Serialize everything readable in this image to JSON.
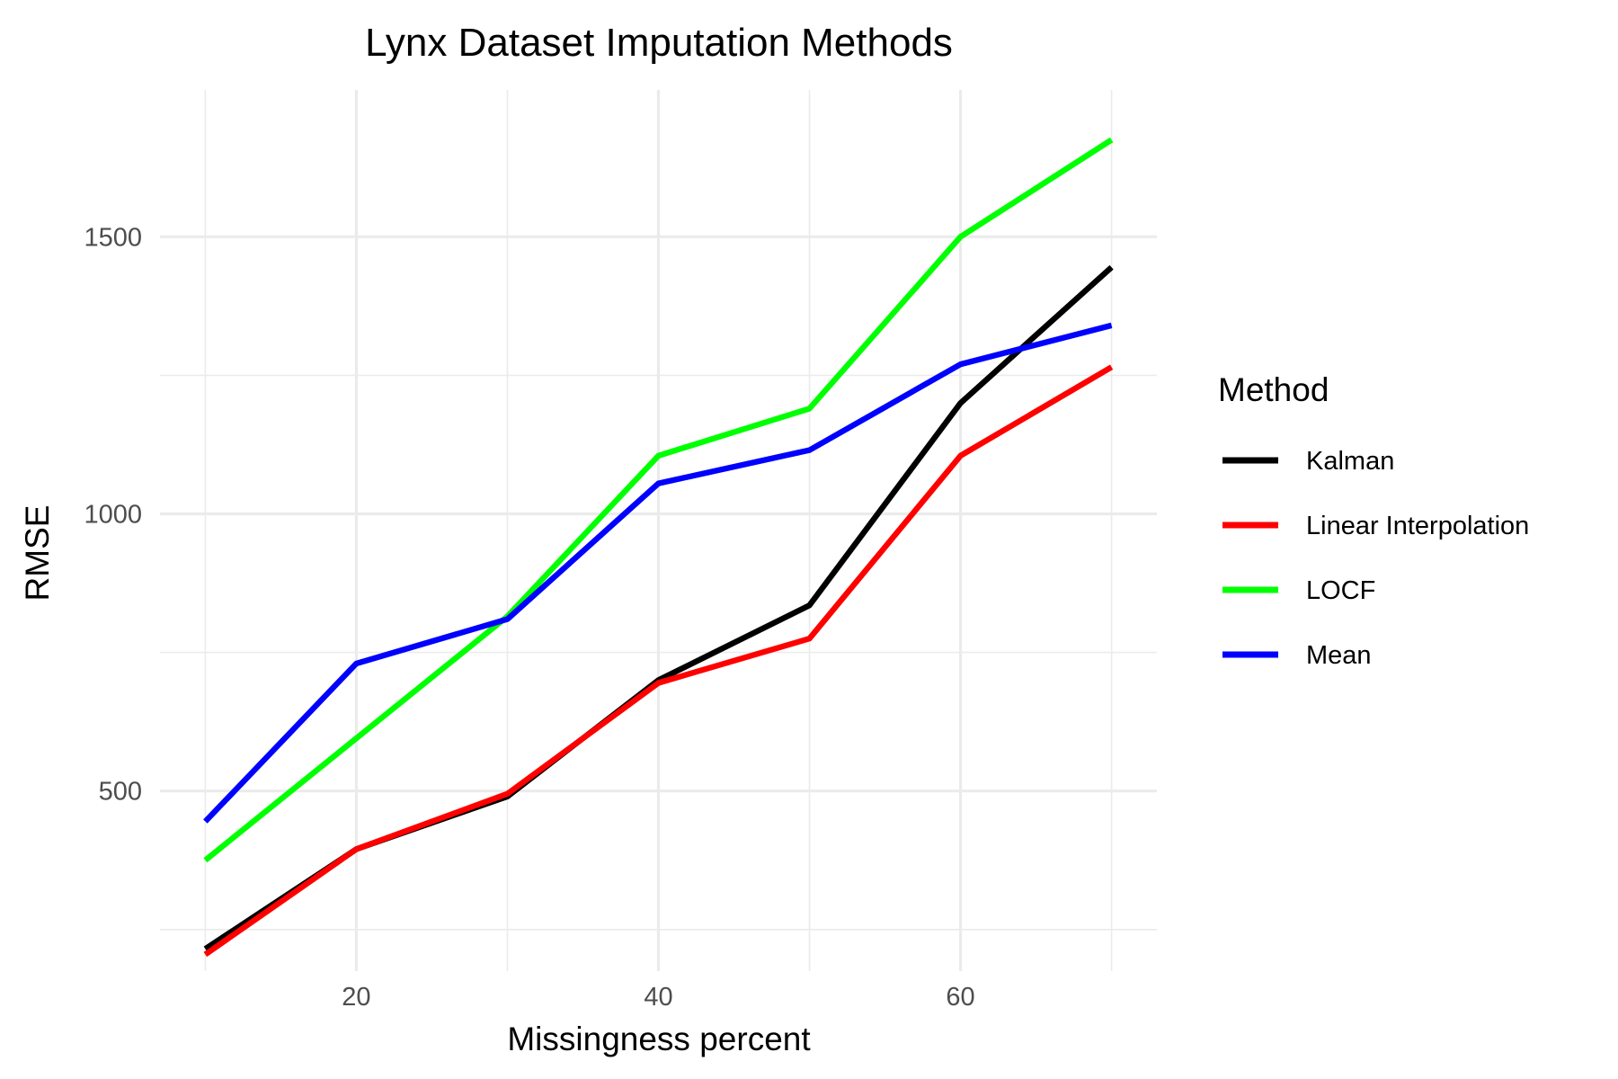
{
  "chart_data": {
    "type": "line",
    "title": "Lynx Dataset Imputation Methods",
    "xlabel": "Missingness percent",
    "ylabel": "RMSE",
    "x": [
      10,
      20,
      30,
      40,
      50,
      60,
      70
    ],
    "xlim": [
      7,
      73
    ],
    "ylim": [
      175,
      1765
    ],
    "x_ticks": [
      20,
      40,
      60
    ],
    "x_minor_ticks": [
      10,
      30,
      50,
      70
    ],
    "y_ticks": [
      500,
      1000,
      1500
    ],
    "y_minor_ticks": [
      250,
      750,
      1250
    ],
    "grid": true,
    "legend": {
      "title": "Method",
      "position": "right"
    },
    "series": [
      {
        "name": "Kalman",
        "color": "#000000",
        "values": [
          215,
          395,
          490,
          700,
          835,
          1200,
          1445
        ]
      },
      {
        "name": "Linear Interpolation",
        "color": "#ff0000",
        "values": [
          205,
          395,
          495,
          695,
          775,
          1105,
          1265
        ]
      },
      {
        "name": "LOCF",
        "color": "#00ff00",
        "values": [
          375,
          595,
          815,
          1105,
          1190,
          1500,
          1675
        ]
      },
      {
        "name": "Mean",
        "color": "#0000ff",
        "values": [
          445,
          730,
          810,
          1055,
          1115,
          1270,
          1340
        ]
      }
    ]
  }
}
